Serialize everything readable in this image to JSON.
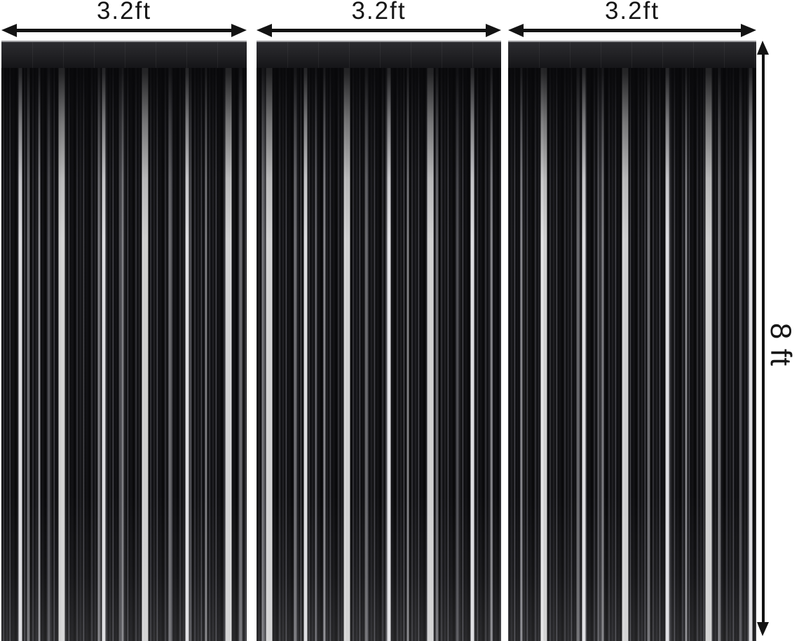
{
  "figure": {
    "description": "three black foil fringe curtains with dimension arrows",
    "width_labels": [
      "3.2ft",
      "3.2ft",
      "3.2ft"
    ],
    "height_label": "8 ft",
    "colors": {
      "background": "#ffffff",
      "annotation": "#131313",
      "curtain_black": "#0a0a0c",
      "shine_silver": "#e8e8ec"
    }
  }
}
